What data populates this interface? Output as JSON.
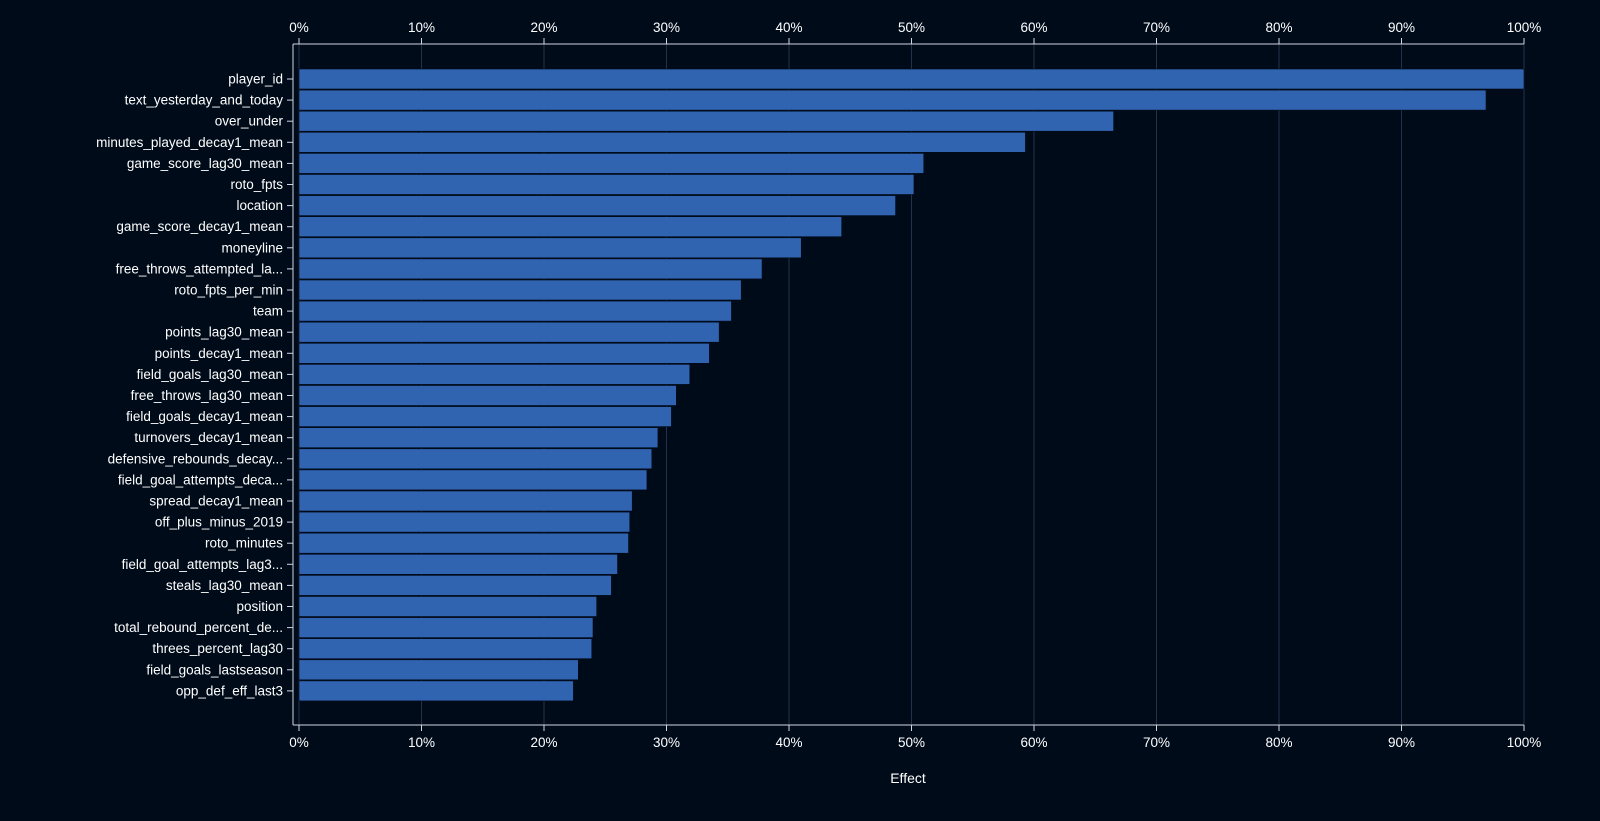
{
  "chart_data": {
    "type": "bar",
    "orientation": "horizontal",
    "categories": [
      "player_id",
      "text_yesterday_and_today",
      "over_under",
      "minutes_played_decay1_mean",
      "game_score_lag30_mean",
      "roto_fpts",
      "location",
      "game_score_decay1_mean",
      "moneyline",
      "free_throws_attempted_la...",
      "roto_fpts_per_min",
      "team",
      "points_lag30_mean",
      "points_decay1_mean",
      "field_goals_lag30_mean",
      "free_throws_lag30_mean",
      "field_goals_decay1_mean",
      "turnovers_decay1_mean",
      "defensive_rebounds_decay...",
      "field_goal_attempts_deca...",
      "spread_decay1_mean",
      "off_plus_minus_2019",
      "roto_minutes",
      "field_goal_attempts_lag3...",
      "steals_lag30_mean",
      "position",
      "total_rebound_percent_de...",
      "threes_percent_lag30",
      "field_goals_lastseason",
      "opp_def_eff_last3"
    ],
    "values": [
      1.0,
      0.969,
      0.665,
      0.593,
      0.51,
      0.502,
      0.487,
      0.443,
      0.41,
      0.378,
      0.361,
      0.353,
      0.343,
      0.335,
      0.319,
      0.308,
      0.304,
      0.293,
      0.288,
      0.284,
      0.272,
      0.27,
      0.269,
      0.26,
      0.255,
      0.243,
      0.24,
      0.239,
      0.228,
      0.224
    ],
    "xlabel": "Effect",
    "ylabel": "",
    "xlim": [
      0,
      1
    ],
    "x_ticks": [
      "0%",
      "10%",
      "20%",
      "30%",
      "40%",
      "50%",
      "60%",
      "70%",
      "80%",
      "90%",
      "100%"
    ],
    "x_axis_position": "top-and-bottom",
    "grid": true,
    "colors": {
      "background": "#000b1a",
      "bar": "#3063b0",
      "bar_stroke": "#000b1a",
      "grid": "#25304a",
      "axis": "#cfd6e0",
      "text": "#ffffff"
    }
  }
}
